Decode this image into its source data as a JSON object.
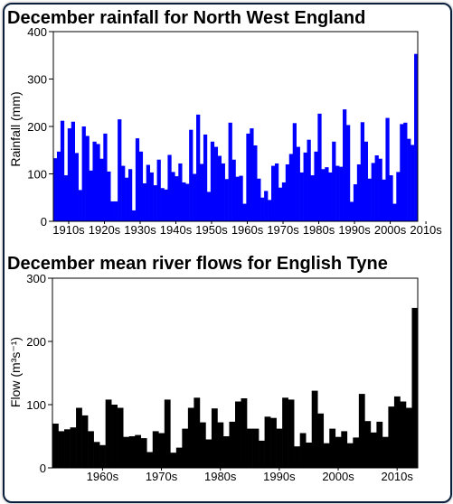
{
  "chart_data": [
    {
      "type": "bar",
      "title": "December rainfall for North West England",
      "xlabel": "",
      "ylabel": "Rainfall (mm)",
      "ylim": [
        0,
        400
      ],
      "yticks": [
        "0",
        "100",
        "200",
        "300",
        "400"
      ],
      "xtick_labels": [
        "1910s",
        "1920s",
        "1930s",
        "1940s",
        "1950s",
        "1960s",
        "1970s",
        "1980s",
        "1990s",
        "2000s",
        "2010s"
      ],
      "color": "#0000ff",
      "values": [
        133,
        147,
        212,
        97,
        196,
        210,
        144,
        66,
        200,
        180,
        107,
        168,
        163,
        132,
        185,
        105,
        42,
        42,
        215,
        117,
        92,
        110,
        23,
        175,
        147,
        80,
        119,
        103,
        76,
        130,
        70,
        67,
        140,
        104,
        95,
        122,
        82,
        79,
        193,
        100,
        225,
        121,
        183,
        62,
        168,
        157,
        138,
        122,
        89,
        208,
        130,
        94,
        96,
        37,
        185,
        196,
        160,
        90,
        50,
        64,
        45,
        117,
        122,
        71,
        82,
        120,
        142,
        207,
        157,
        103,
        145,
        172,
        97,
        147,
        227,
        110,
        114,
        103,
        168,
        117,
        115,
        236,
        203,
        41,
        78,
        120,
        209,
        168,
        90,
        123,
        139,
        132,
        88,
        218,
        97,
        37,
        104,
        205,
        208,
        174,
        161,
        353
      ]
    },
    {
      "type": "bar",
      "title": "December mean river flows for English Tyne",
      "xlabel": "",
      "ylabel": "Flow (m³s⁻¹)",
      "ylim": [
        0,
        300
      ],
      "yticks": [
        "0",
        "100",
        "200",
        "300"
      ],
      "xtick_labels": [
        "1960s",
        "1970s",
        "1980s",
        "1990s",
        "2000s",
        "2010s"
      ],
      "color": "#000000",
      "values": [
        70,
        58,
        61,
        64,
        95,
        83,
        58,
        41,
        36,
        108,
        100,
        95,
        49,
        50,
        52,
        47,
        25,
        58,
        55,
        108,
        24,
        32,
        62,
        95,
        111,
        72,
        45,
        94,
        72,
        50,
        73,
        105,
        110,
        62,
        62,
        43,
        81,
        79,
        62,
        111,
        108,
        34,
        55,
        40,
        122,
        86,
        39,
        62,
        49,
        58,
        39,
        48,
        117,
        74,
        56,
        73,
        49,
        97,
        113,
        105,
        95,
        253
      ]
    }
  ]
}
